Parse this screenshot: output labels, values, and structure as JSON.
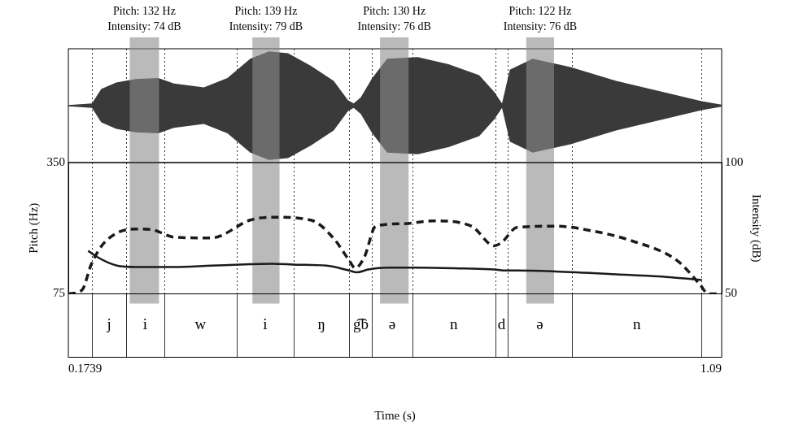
{
  "chart_data": {
    "type": "line",
    "x_label": "Time (s)",
    "xlim": [
      0.1739,
      1.09
    ],
    "xticks": [
      0.1739,
      1.09
    ],
    "y_label": "Pitch (Hz)",
    "ylim": [
      75,
      350
    ],
    "yticks": [
      75,
      350
    ],
    "y2_label": "Intensity (dB)",
    "y2lim": [
      50,
      100
    ],
    "y2ticks": [
      50,
      100
    ],
    "grid": false,
    "series": [
      {
        "color": "#1a1a1a",
        "line_style": "solid",
        "x": [
          0.2017,
          0.2146,
          0.2306,
          0.2467,
          0.2788,
          0.3216,
          0.3751,
          0.4286,
          0.4607,
          0.4928,
          0.5356,
          0.5677,
          0.5784,
          0.5945,
          0.6212,
          0.664,
          0.7283,
          0.7711,
          0.7839,
          0.8032,
          0.8567,
          0.9423,
          1.0172,
          1.0622
        ],
        "values": [
          165,
          152,
          140,
          133,
          131,
          131,
          134,
          137,
          138,
          136,
          134,
          124,
          120,
          126,
          130,
          130,
          128,
          126,
          124,
          124,
          122,
          116,
          110,
          104
        ]
      },
      {
        "color": "#1a1a1a",
        "line_style": "dashed",
        "axis": "y2",
        "x": [
          0.174,
          0.193,
          0.206,
          0.225,
          0.268,
          0.29,
          0.322,
          0.375,
          0.429,
          0.461,
          0.514,
          0.546,
          0.568,
          0.576,
          0.589,
          0.605,
          0.643,
          0.685,
          0.739,
          0.771,
          0.782,
          0.803,
          0.857,
          0.91,
          0.964,
          1.028,
          1.06,
          1.071,
          1.09
        ],
        "values": [
          50,
          51.4,
          61.2,
          69.7,
          74.7,
          74.5,
          71.6,
          71.3,
          78.1,
          79.2,
          78.1,
          71.1,
          62.6,
          59.8,
          64,
          75.8,
          76.7,
          77.8,
          75.8,
          68.3,
          69.7,
          75.3,
          75.8,
          73.9,
          70.2,
          62.6,
          53.4,
          50,
          50
        ]
      }
    ],
    "waveform": {
      "x": [
        0.174,
        0.207,
        0.22,
        0.241,
        0.268,
        0.3,
        0.322,
        0.364,
        0.397,
        0.429,
        0.455,
        0.482,
        0.514,
        0.546,
        0.566,
        0.574,
        0.584,
        0.6,
        0.621,
        0.664,
        0.707,
        0.75,
        0.771,
        0.782,
        0.793,
        0.825,
        0.878,
        0.942,
        1.007,
        1.062,
        1.09
      ],
      "amplitude": [
        0.01,
        0.04,
        0.3,
        0.42,
        0.48,
        0.5,
        0.4,
        0.33,
        0.5,
        0.85,
        0.98,
        0.95,
        0.72,
        0.45,
        0.1,
        0.04,
        0.15,
        0.5,
        0.85,
        0.88,
        0.75,
        0.55,
        0.25,
        0.04,
        0.65,
        0.85,
        0.7,
        0.45,
        0.25,
        0.08,
        0.02
      ]
    },
    "segments": [
      {
        "label": "j",
        "start": 0.207,
        "end": 0.255
      },
      {
        "label": "i",
        "start": 0.255,
        "end": 0.308
      },
      {
        "label": "w",
        "start": 0.308,
        "end": 0.41
      },
      {
        "label": "i",
        "start": 0.41,
        "end": 0.49
      },
      {
        "label": "ŋ",
        "start": 0.49,
        "end": 0.568
      },
      {
        "label": "g͡b",
        "start": 0.568,
        "end": 0.6
      },
      {
        "label": "ə",
        "start": 0.6,
        "end": 0.656
      },
      {
        "label": "n",
        "start": 0.656,
        "end": 0.773
      },
      {
        "label": "d",
        "start": 0.773,
        "end": 0.79
      },
      {
        "label": "ə",
        "start": 0.79,
        "end": 0.88
      },
      {
        "label": "n",
        "start": 0.88,
        "end": 1.062
      }
    ],
    "annotations": [
      {
        "start": 0.26,
        "end": 0.301,
        "text": [
          "Pitch: 132 Hz",
          "Intensity: 74 dB"
        ]
      },
      {
        "start": 0.432,
        "end": 0.47,
        "text": [
          "Pitch: 139 Hz",
          "Intensity: 79 dB"
        ]
      },
      {
        "start": 0.611,
        "end": 0.651,
        "text": [
          "Pitch: 130 Hz",
          "Intensity: 76 dB"
        ]
      },
      {
        "start": 0.816,
        "end": 0.855,
        "text": [
          "Pitch: 122 Hz",
          "Intensity: 76 dB"
        ]
      }
    ]
  }
}
